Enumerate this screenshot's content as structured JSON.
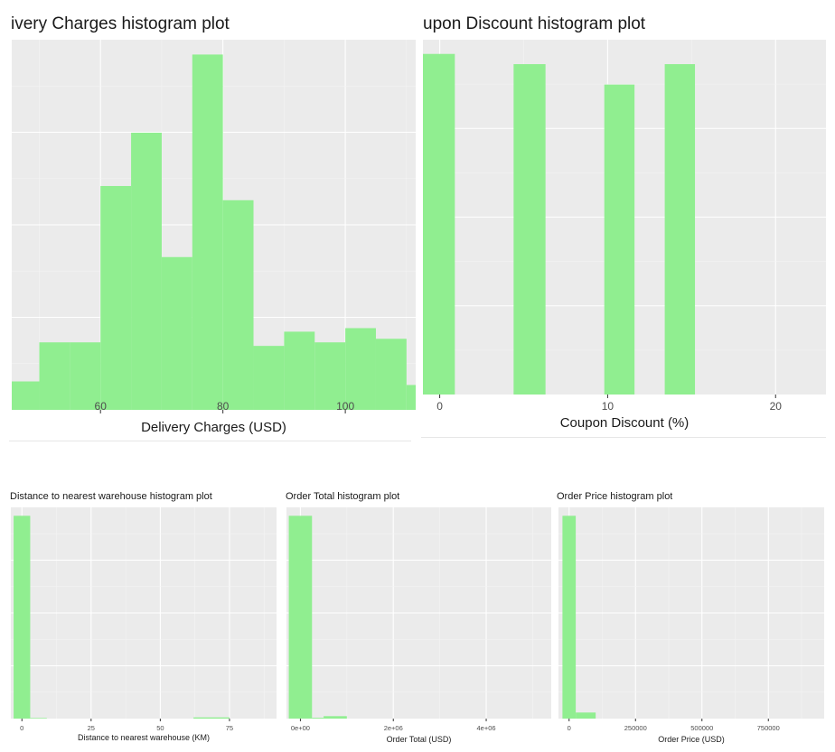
{
  "colors": {
    "panel_background": "#ebebeb",
    "grid_major": "#ffffff",
    "grid_minor": "#f4f4f4",
    "bar_fill": "#90ee90",
    "tick_text": "#4d4d4d",
    "title_text": "#1a1a1a"
  },
  "chart_data": [
    {
      "type": "bar",
      "title": "ivery Charges histogram plot",
      "xlabel": "Delivery Charges (USD)",
      "ylabel": "",
      "xlim": [
        45.5,
        111.5
      ],
      "ylim": [
        0,
        100
      ],
      "x_ticks": [
        60,
        80,
        100
      ],
      "y_ticks": [],
      "grid": true,
      "bins": [
        {
          "x0": 45,
          "x1": 50,
          "count": 8
        },
        {
          "x0": 50,
          "x1": 55,
          "count": 19
        },
        {
          "x0": 55,
          "x1": 60,
          "count": 19
        },
        {
          "x0": 60,
          "x1": 65,
          "count": 63
        },
        {
          "x0": 65,
          "x1": 70,
          "count": 78
        },
        {
          "x0": 70,
          "x1": 75,
          "count": 43
        },
        {
          "x0": 75,
          "x1": 80,
          "count": 100
        },
        {
          "x0": 80,
          "x1": 85,
          "count": 59
        },
        {
          "x0": 85,
          "x1": 90,
          "count": 18
        },
        {
          "x0": 90,
          "x1": 95,
          "count": 22
        },
        {
          "x0": 95,
          "x1": 100,
          "count": 19
        },
        {
          "x0": 100,
          "x1": 105,
          "count": 23
        },
        {
          "x0": 105,
          "x1": 110,
          "count": 20
        },
        {
          "x0": 110,
          "x1": 115,
          "count": 7
        }
      ]
    },
    {
      "type": "bar",
      "title": "upon Discount histogram plot",
      "xlabel": "Coupon Discount (%)",
      "ylabel": "",
      "xlim": [
        -1,
        23
      ],
      "ylim": [
        0,
        100
      ],
      "x_ticks": [
        0,
        10,
        20
      ],
      "y_ticks": [],
      "grid": true,
      "bins": [
        {
          "x0": -1,
          "x1": 0.9,
          "count": 100
        },
        {
          "x0": 4.4,
          "x1": 6.3,
          "count": 97
        },
        {
          "x0": 9.8,
          "x1": 11.6,
          "count": 91
        },
        {
          "x0": 13.4,
          "x1": 15.2,
          "count": 97
        }
      ]
    },
    {
      "type": "bar",
      "title": "Distance to nearest warehouse histogram plot",
      "xlabel": "Distance to nearest warehouse (KM)",
      "ylabel": "",
      "xlim": [
        -4,
        92
      ],
      "ylim": [
        0,
        100
      ],
      "x_ticks": [
        0,
        25,
        50,
        75
      ],
      "y_ticks": [],
      "grid": true,
      "bins": [
        {
          "x0": -3,
          "x1": 3,
          "count": 100
        },
        {
          "x0": 3,
          "x1": 9,
          "count": 0.3
        },
        {
          "x0": 62,
          "x1": 75,
          "count": 0.6
        }
      ]
    },
    {
      "type": "bar",
      "title": "Order Total histogram plot",
      "xlabel": "Order Total (USD)",
      "ylabel": "",
      "xlim": [
        -300000,
        5400000
      ],
      "ylim": [
        0,
        100
      ],
      "x_ticks": [
        0,
        2000000,
        4000000
      ],
      "x_tick_labels": [
        "0e+00",
        "2e+06",
        "4e+06"
      ],
      "y_ticks": [],
      "grid": true,
      "bins": [
        {
          "x0": -250000,
          "x1": 250000,
          "count": 100
        },
        {
          "x0": 250000,
          "x1": 500000,
          "count": 0.4
        },
        {
          "x0": 500000,
          "x1": 1000000,
          "count": 1.2
        }
      ]
    },
    {
      "type": "bar",
      "title": "Order Price histogram plot",
      "xlabel": "Order Price (USD)",
      "ylabel": "",
      "xlim": [
        -40000,
        960000
      ],
      "ylim": [
        0,
        100
      ],
      "x_ticks": [
        0,
        250000,
        500000,
        750000
      ],
      "x_tick_labels": [
        "0",
        "250000",
        "500000",
        "750000"
      ],
      "y_ticks": [],
      "grid": true,
      "bins": [
        {
          "x0": -25000,
          "x1": 25000,
          "count": 100
        },
        {
          "x0": 25000,
          "x1": 100000,
          "count": 3
        }
      ]
    }
  ]
}
